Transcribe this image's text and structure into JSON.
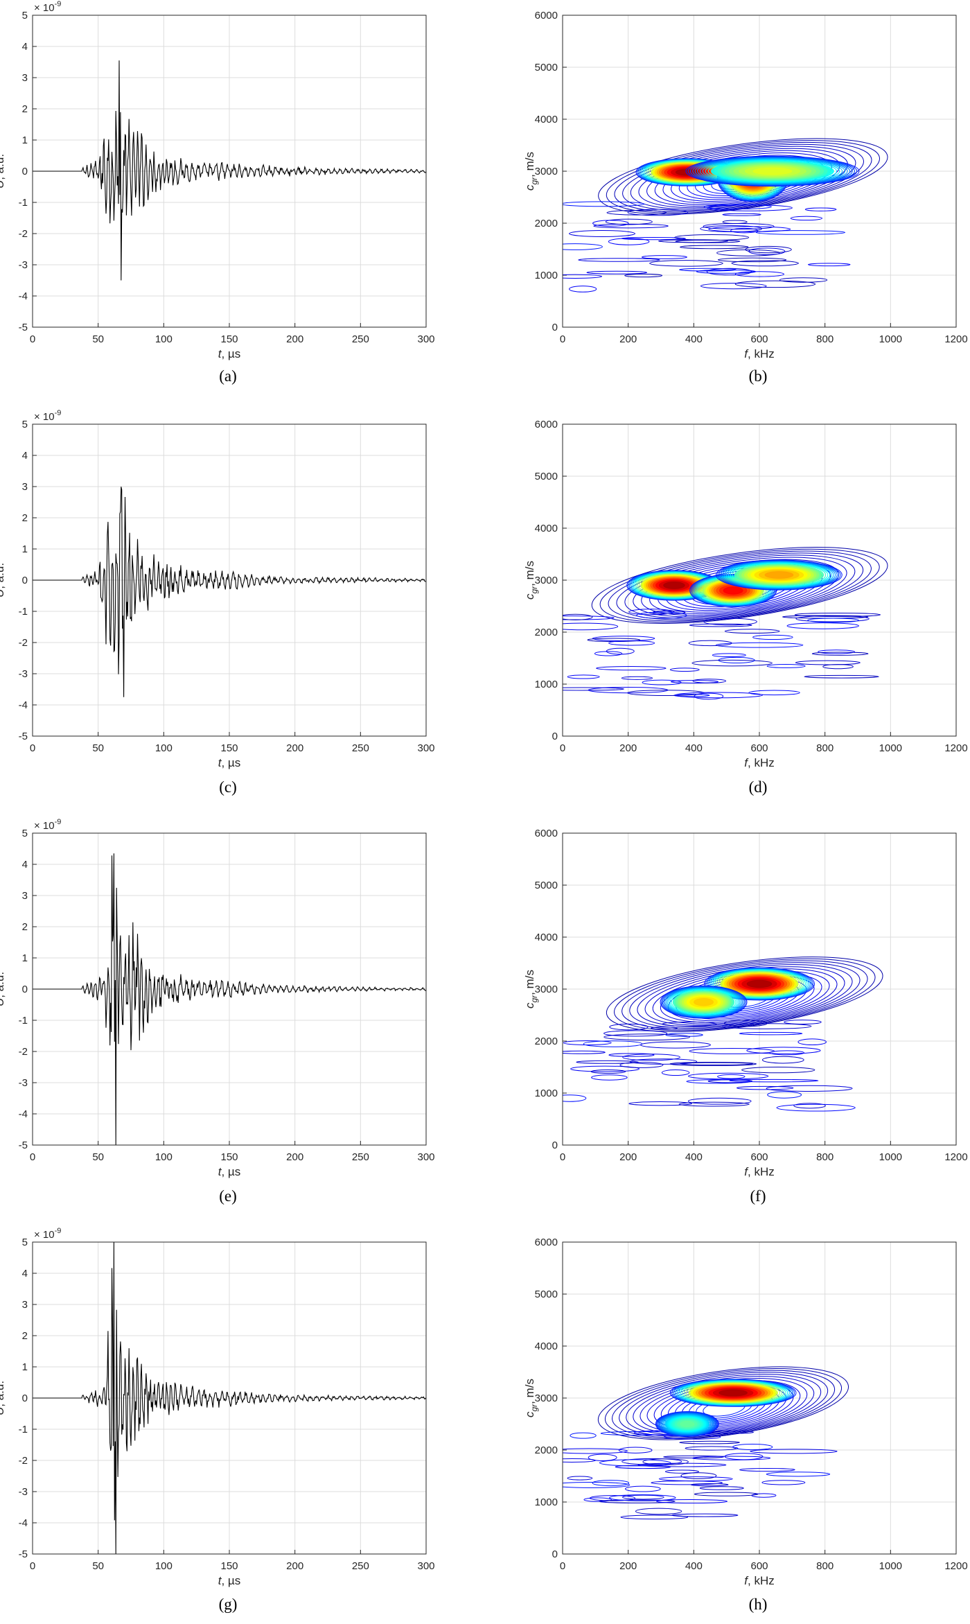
{
  "colors": {
    "signal": "#000000",
    "grid": "#dcdcdc",
    "axis": "#262626"
  },
  "chart_data": [
    {
      "id": "a",
      "type": "line",
      "caption": "(a)",
      "xlabel_italic": "t",
      "xlabel_rest": ", µs",
      "ylabel_italic": "U",
      "ylabel_rest": ", a.u.",
      "exponent_base": "× 10",
      "exponent_power": "-9",
      "xlim": [
        0,
        300
      ],
      "ylim": [
        -5,
        5
      ],
      "xticks": [
        "0",
        "50",
        "100",
        "150",
        "200",
        "250",
        "300"
      ],
      "yticks": [
        "5",
        "4",
        "3",
        "2",
        "1",
        "0",
        "-1",
        "-2",
        "-3",
        "-4",
        "-5"
      ],
      "onset_us": 38,
      "peak_time_us": 66,
      "peak_max": 3.55,
      "peak_min": -3.5,
      "envelope": [
        [
          38,
          0.1
        ],
        [
          50,
          0.6
        ],
        [
          58,
          2.0
        ],
        [
          63,
          2.1
        ],
        [
          66,
          3.55
        ],
        [
          72,
          1.8
        ],
        [
          80,
          1.6
        ],
        [
          90,
          0.9
        ],
        [
          100,
          0.6
        ],
        [
          120,
          0.35
        ],
        [
          150,
          0.3
        ],
        [
          180,
          0.2
        ],
        [
          220,
          0.12
        ],
        [
          260,
          0.08
        ],
        [
          300,
          0.06
        ]
      ]
    },
    {
      "id": "b",
      "type": "contour",
      "caption": "(b)",
      "xlabel_italic": "f",
      "xlabel_rest": ", kHz",
      "ylabel_main": "c",
      "ylabel_sub": "gr",
      "ylabel_rest": ", m/s",
      "xlim": [
        0,
        1200
      ],
      "ylim": [
        0,
        6000
      ],
      "xticks": [
        "0",
        "200",
        "400",
        "600",
        "800",
        "1000",
        "1200"
      ],
      "yticks": [
        "6000",
        "5000",
        "4000",
        "3000",
        "2000",
        "1000",
        "0"
      ],
      "peaks": [
        {
          "f": 380,
          "c": 2980,
          "amp": 1.0,
          "sf": 65,
          "sc": 110
        },
        {
          "f": 580,
          "c": 2850,
          "amp": 0.9,
          "sf": 45,
          "sc": 180
        },
        {
          "f": 640,
          "c": 3000,
          "amp": 0.55,
          "sf": 110,
          "sc": 120
        }
      ]
    },
    {
      "id": "c",
      "type": "line",
      "caption": "(c)",
      "xlabel_italic": "t",
      "xlabel_rest": ", µs",
      "ylabel_italic": "U",
      "ylabel_rest": ", a.u.",
      "exponent_base": "× 10",
      "exponent_power": "-9",
      "xlim": [
        0,
        300
      ],
      "ylim": [
        -5,
        5
      ],
      "xticks": [
        "0",
        "50",
        "100",
        "150",
        "200",
        "250",
        "300"
      ],
      "yticks": [
        "5",
        "4",
        "3",
        "2",
        "1",
        "0",
        "-1",
        "-2",
        "-3",
        "-4",
        "-5"
      ],
      "onset_us": 38,
      "peak_time_us": 68,
      "peak_max": 2.9,
      "peak_min": -3.75,
      "envelope": [
        [
          38,
          0.1
        ],
        [
          50,
          0.4
        ],
        [
          58,
          2.9
        ],
        [
          62,
          2.6
        ],
        [
          68,
          3.7
        ],
        [
          75,
          2.0
        ],
        [
          85,
          1.2
        ],
        [
          100,
          0.7
        ],
        [
          120,
          0.4
        ],
        [
          150,
          0.35
        ],
        [
          180,
          0.15
        ],
        [
          220,
          0.1
        ],
        [
          260,
          0.08
        ],
        [
          300,
          0.05
        ]
      ]
    },
    {
      "id": "d",
      "type": "contour",
      "caption": "(d)",
      "xlabel_italic": "f",
      "xlabel_rest": ", kHz",
      "ylabel_main": "c",
      "ylabel_sub": "gr",
      "ylabel_rest": ", m/s",
      "xlim": [
        0,
        1200
      ],
      "ylim": [
        0,
        6000
      ],
      "xticks": [
        "0",
        "200",
        "400",
        "600",
        "800",
        "1000",
        "1200"
      ],
      "yticks": [
        "6000",
        "5000",
        "4000",
        "3000",
        "2000",
        "1000",
        "0"
      ],
      "peaks": [
        {
          "f": 340,
          "c": 2900,
          "amp": 1.0,
          "sf": 60,
          "sc": 120
        },
        {
          "f": 520,
          "c": 2800,
          "amp": 0.9,
          "sf": 55,
          "sc": 130
        },
        {
          "f": 660,
          "c": 3100,
          "amp": 0.7,
          "sf": 80,
          "sc": 120
        }
      ]
    },
    {
      "id": "e",
      "type": "line",
      "caption": "(e)",
      "xlabel_italic": "t",
      "xlabel_rest": ", µs",
      "ylabel_italic": "U",
      "ylabel_rest": ", a.u.",
      "exponent_base": "× 10",
      "exponent_power": "-9",
      "xlim": [
        0,
        300
      ],
      "ylim": [
        -5,
        5
      ],
      "xticks": [
        "0",
        "50",
        "100",
        "150",
        "200",
        "250",
        "300"
      ],
      "yticks": [
        "5",
        "4",
        "3",
        "2",
        "1",
        "0",
        "-1",
        "-2",
        "-3",
        "-4",
        "-5"
      ],
      "onset_us": 38,
      "peak_time_us": 62,
      "peak_max": 4.35,
      "peak_min": -5.0,
      "envelope": [
        [
          38,
          0.1
        ],
        [
          55,
          0.5
        ],
        [
          60,
          4.3
        ],
        [
          62,
          5.0
        ],
        [
          66,
          2.4
        ],
        [
          70,
          3.1
        ],
        [
          80,
          2.1
        ],
        [
          90,
          1.0
        ],
        [
          100,
          0.7
        ],
        [
          120,
          0.4
        ],
        [
          150,
          0.3
        ],
        [
          180,
          0.15
        ],
        [
          220,
          0.1
        ],
        [
          260,
          0.07
        ],
        [
          300,
          0.05
        ]
      ]
    },
    {
      "id": "f",
      "type": "contour",
      "caption": "(f)",
      "xlabel_italic": "f",
      "xlabel_rest": ", kHz",
      "ylabel_main": "c",
      "ylabel_sub": "gr",
      "ylabel_rest": ", m/s",
      "xlim": [
        0,
        1200
      ],
      "ylim": [
        0,
        6000
      ],
      "xticks": [
        "0",
        "200",
        "400",
        "600",
        "800",
        "1000",
        "1200"
      ],
      "yticks": [
        "6000",
        "5000",
        "4000",
        "3000",
        "2000",
        "1000",
        "0"
      ],
      "peaks": [
        {
          "f": 600,
          "c": 3100,
          "amp": 1.0,
          "sf": 70,
          "sc": 130
        },
        {
          "f": 430,
          "c": 2750,
          "amp": 0.65,
          "sf": 55,
          "sc": 130
        }
      ]
    },
    {
      "id": "g",
      "type": "line",
      "caption": "(g)",
      "xlabel_italic": "t",
      "xlabel_rest": ", µs",
      "ylabel_italic": "U",
      "ylabel_rest": ", a.u.",
      "exponent_base": "× 10",
      "exponent_power": "-9",
      "xlim": [
        0,
        300
      ],
      "ylim": [
        -5,
        5
      ],
      "xticks": [
        "0",
        "50",
        "100",
        "150",
        "200",
        "250",
        "300"
      ],
      "yticks": [
        "5",
        "4",
        "3",
        "2",
        "1",
        "0",
        "-1",
        "-2",
        "-3",
        "-4",
        "-5"
      ],
      "onset_us": 38,
      "peak_time_us": 62,
      "peak_max": 5.0,
      "peak_min": -5.0,
      "envelope": [
        [
          38,
          0.1
        ],
        [
          55,
          0.4
        ],
        [
          60,
          5.0
        ],
        [
          63,
          5.0
        ],
        [
          66,
          2.7
        ],
        [
          72,
          1.8
        ],
        [
          80,
          1.5
        ],
        [
          90,
          0.8
        ],
        [
          100,
          0.6
        ],
        [
          120,
          0.4
        ],
        [
          150,
          0.3
        ],
        [
          180,
          0.15
        ],
        [
          220,
          0.1
        ],
        [
          260,
          0.07
        ],
        [
          300,
          0.05
        ]
      ]
    },
    {
      "id": "h",
      "type": "contour",
      "caption": "(h)",
      "xlabel_italic": "f",
      "xlabel_rest": ", kHz",
      "ylabel_main": "c",
      "ylabel_sub": "gr",
      "ylabel_rest": ", m/s",
      "xlim": [
        0,
        1200
      ],
      "ylim": [
        0,
        6000
      ],
      "xticks": [
        "0",
        "200",
        "400",
        "600",
        "800",
        "1000",
        "1200"
      ],
      "yticks": [
        "6000",
        "5000",
        "4000",
        "3000",
        "2000",
        "1000",
        "0"
      ],
      "peaks": [
        {
          "f": 520,
          "c": 3100,
          "amp": 1.0,
          "sf": 80,
          "sc": 110
        },
        {
          "f": 380,
          "c": 2500,
          "amp": 0.4,
          "sf": 40,
          "sc": 100
        }
      ]
    }
  ]
}
